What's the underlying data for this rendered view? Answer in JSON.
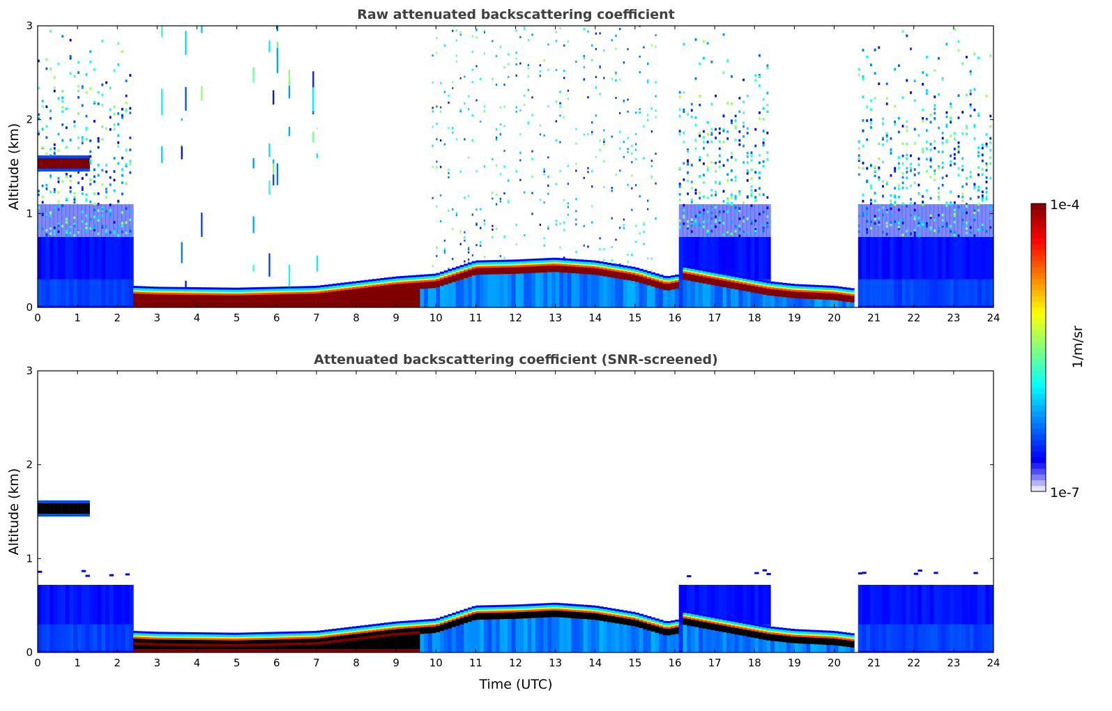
{
  "chart_data": [
    {
      "type": "heatmap",
      "title": "Raw attenuated backscattering coefficient",
      "xlabel": "",
      "ylabel": "Altitude (km)",
      "xlim": [
        0,
        24
      ],
      "ylim": [
        0,
        3
      ],
      "xticks": [
        "0",
        "1",
        "2",
        "3",
        "4",
        "5",
        "6",
        "7",
        "8",
        "9",
        "10",
        "11",
        "12",
        "13",
        "14",
        "15",
        "16",
        "17",
        "18",
        "19",
        "20",
        "21",
        "22",
        "23",
        "24"
      ],
      "yticks": [
        "0",
        "1",
        "2",
        "3"
      ],
      "screened": false
    },
    {
      "type": "heatmap",
      "title": "Attenuated backscattering coefficient (SNR-screened)",
      "xlabel": "Time (UTC)",
      "ylabel": "Altitude (km)",
      "xlim": [
        0,
        24
      ],
      "ylim": [
        0,
        3
      ],
      "xticks": [
        "0",
        "1",
        "2",
        "3",
        "4",
        "5",
        "6",
        "7",
        "8",
        "9",
        "10",
        "11",
        "12",
        "13",
        "14",
        "15",
        "16",
        "17",
        "18",
        "19",
        "20",
        "21",
        "22",
        "23",
        "24"
      ],
      "yticks": [
        "0",
        "1",
        "2",
        "3"
      ],
      "screened": true
    }
  ],
  "features": {
    "aerosol_layer_top_km": [
      [
        2.4,
        0.2
      ],
      [
        3,
        0.19
      ],
      [
        5,
        0.18
      ],
      [
        7,
        0.2
      ],
      [
        8,
        0.25
      ],
      [
        9,
        0.3
      ],
      [
        10,
        0.33
      ],
      [
        10.5,
        0.4
      ],
      [
        11,
        0.47
      ],
      [
        12,
        0.48
      ],
      [
        13,
        0.5
      ],
      [
        14,
        0.47
      ],
      [
        15,
        0.4
      ],
      [
        15.8,
        0.3
      ],
      [
        16.05,
        0.32
      ],
      [
        16.2,
        0.42
      ],
      [
        16.7,
        0.38
      ],
      [
        18.35,
        0.25
      ],
      [
        19,
        0.22
      ],
      [
        20,
        0.2
      ],
      [
        20.55,
        0.17
      ]
    ],
    "noisy_periods_h": [
      [
        0,
        2.4
      ],
      [
        16.05,
        18.35
      ],
      [
        20.6,
        24
      ]
    ],
    "cloud": {
      "start_h": 0,
      "end_h": 1.25,
      "base_km": 1.45,
      "top_km": 1.62
    }
  },
  "colorbar": {
    "label": "1/m/sr",
    "max_label": "1e-4",
    "min_label": "1e-7",
    "colormap": "jet",
    "low_color": "#e6e6fa",
    "high_color": "#7f0000"
  }
}
